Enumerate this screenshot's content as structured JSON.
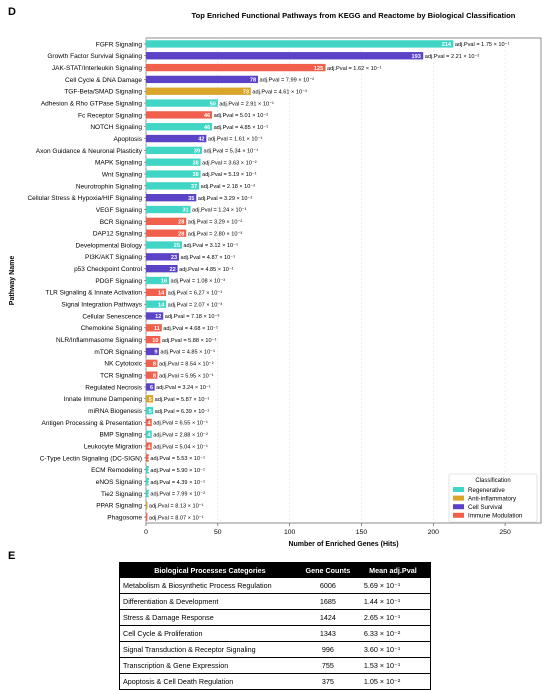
{
  "panel_d": {
    "letter": "D"
  },
  "panel_e": {
    "letter": "E"
  },
  "chart_data": {
    "type": "bar",
    "orientation": "horizontal",
    "title": "Top Enriched Functional Pathways from KEGG and Reactome by Biological Classification",
    "xlabel": "Number of Enriched Genes (Hits)",
    "ylabel": "Pathway Name",
    "xlim": [
      0,
      275
    ],
    "xticks": [
      "0",
      "50",
      "100",
      "150",
      "200",
      "250"
    ],
    "grid": true,
    "legend": {
      "title": "Classification",
      "placement": "bottom-right",
      "items": [
        {
          "name": "Regenerative",
          "color": "#40d5c4"
        },
        {
          "name": "Anti-inflammatory",
          "color": "#d9a52b"
        },
        {
          "name": "Cell Survival",
          "color": "#5b42c6"
        },
        {
          "name": "Immune Modulation",
          "color": "#f0604d"
        }
      ]
    },
    "bars": [
      {
        "label": "FGFR Signaling",
        "value": 214,
        "class": "Regenerative",
        "pval": "adj.Pval = 1.75 × 10⁻¹"
      },
      {
        "label": "Growth Factor Survival Signaling",
        "value": 193,
        "class": "Cell Survival",
        "pval": "adj.Pval = 2.21 × 10⁻²"
      },
      {
        "label": "JAK-STAT/Interleukin Signaling",
        "value": 125,
        "class": "Immune Modulation",
        "pval": "adj.Pval = 1.62 × 10⁻¹"
      },
      {
        "label": "Cell Cycle & DNA Damage",
        "value": 78,
        "class": "Cell Survival",
        "pval": "adj.Pval = 7.99 × 10⁻²"
      },
      {
        "label": "TGF-Beta/SMAD Signaling",
        "value": 73,
        "class": "Anti-inflammatory",
        "pval": "adj.Pval = 4.61 × 10⁻³"
      },
      {
        "label": "Adhesion & Rho GTPase Signaling",
        "value": 50,
        "class": "Regenerative",
        "pval": "adj.Pval = 2.91 × 10⁻¹"
      },
      {
        "label": "Fc Receptor Signaling",
        "value": 46,
        "class": "Immune Modulation",
        "pval": "adj.Pval = 5.01 × 10⁻²"
      },
      {
        "label": "NOTCH Signaling",
        "value": 46,
        "class": "Regenerative",
        "pval": "adj.Pval = 4.85 × 10⁻¹"
      },
      {
        "label": "Apoptosis",
        "value": 42,
        "class": "Cell Survival",
        "pval": "adj.Pval = 1.61 × 10⁻¹"
      },
      {
        "label": "Axon Guidance & Neuronal Plasticity",
        "value": 39,
        "class": "Regenerative",
        "pval": "adj.Pval = 5.34 × 10⁻¹"
      },
      {
        "label": "MAPK Signaling",
        "value": 38,
        "class": "Regenerative",
        "pval": "adj.Pval = 3.63 × 10⁻²"
      },
      {
        "label": "Wnt Signaling",
        "value": 38,
        "class": "Regenerative",
        "pval": "adj.Pval = 5.19 × 10⁻¹"
      },
      {
        "label": "Neurotrophin Signaling",
        "value": 37,
        "class": "Regenerative",
        "pval": "adj.Pval = 2.18 × 10⁻²"
      },
      {
        "label": "Cellular Stress & Hypoxia/HIF Signaling",
        "value": 35,
        "class": "Cell Survival",
        "pval": "adj.Pval = 3.29 × 10⁻²"
      },
      {
        "label": "VEGF Signaling",
        "value": 31,
        "class": "Regenerative",
        "pval": "adj.Pval = 1.24 × 10⁻¹"
      },
      {
        "label": "BCR Signaling",
        "value": 28,
        "class": "Immune Modulation",
        "pval": "adj.Pval = 3.29 × 10⁻²"
      },
      {
        "label": "DAP12 Signaling",
        "value": 28,
        "class": "Immune Modulation",
        "pval": "adj.Pval = 2.80 × 10⁻³"
      },
      {
        "label": "Developmental Biology",
        "value": 25,
        "class": "Regenerative",
        "pval": "adj.Pval = 3.12 × 10⁻¹"
      },
      {
        "label": "PI3K/AKT Signaling",
        "value": 23,
        "class": "Cell Survival",
        "pval": "adj.Pval = 4.87 × 10⁻¹"
      },
      {
        "label": "p53 Checkpoint Control",
        "value": 22,
        "class": "Cell Survival",
        "pval": "adj.Pval = 4.85 × 10⁻¹"
      },
      {
        "label": "PDGF Signaling",
        "value": 16,
        "class": "Regenerative",
        "pval": "adj.Pval = 1.08 × 10⁻³"
      },
      {
        "label": "TLR Signaling & Innate Activation",
        "value": 14,
        "class": "Immune Modulation",
        "pval": "adj.Pval = 6.27 × 10⁻¹"
      },
      {
        "label": "Signal Integration Pathways",
        "value": 14,
        "class": "Regenerative",
        "pval": "adj.Pval = 2.07 × 10⁻³"
      },
      {
        "label": "Cellular Senescence",
        "value": 12,
        "class": "Cell Survival",
        "pval": "adj.Pval = 7.18 × 10⁻³"
      },
      {
        "label": "Chemokine Signaling",
        "value": 11,
        "class": "Immune Modulation",
        "pval": "adj.Pval = 4.68 × 10⁻¹"
      },
      {
        "label": "NLR/Inflammasome Signaling",
        "value": 10,
        "class": "Immune Modulation",
        "pval": "adj.Pval = 5.88 × 10⁻¹"
      },
      {
        "label": "mTOR Signaling",
        "value": 9,
        "class": "Cell Survival",
        "pval": "adj.Pval = 4.85 × 10⁻¹"
      },
      {
        "label": "NK Cytotoxic",
        "value": 8,
        "class": "Immune Modulation",
        "pval": "adj.Pval = 8.54 × 10⁻²"
      },
      {
        "label": "TCR Signaling",
        "value": 8,
        "class": "Immune Modulation",
        "pval": "adj.Pval = 5.95 × 10⁻¹"
      },
      {
        "label": "Regulated Necrosis",
        "value": 6,
        "class": "Cell Survival",
        "pval": "adj.Pval = 3.24 × 10⁻¹"
      },
      {
        "label": "Innate Immune Dampening",
        "value": 5,
        "class": "Anti-inflammatory",
        "pval": "adj.Pval = 5.87 × 10⁻¹"
      },
      {
        "label": "miRNA Biogenesis",
        "value": 5,
        "class": "Regenerative",
        "pval": "adj.Pval = 6.39 × 10⁻¹"
      },
      {
        "label": "Antigen Processing & Presentation",
        "value": 4,
        "class": "Immune Modulation",
        "pval": "adj.Pval = 6.55 × 10⁻¹"
      },
      {
        "label": "BMP Signaling",
        "value": 4,
        "class": "Regenerative",
        "pval": "adj.Pval = 2.88 × 10⁻²"
      },
      {
        "label": "Leukocyte Migration",
        "value": 4,
        "class": "Immune Modulation",
        "pval": "adj.Pval = 5.04 × 10⁻¹"
      },
      {
        "label": "C-Type Lectin Signaling (DC-SIGN)",
        "value": 2,
        "class": "Immune Modulation",
        "pval": "adj.Pval = 5.53 × 10⁻¹"
      },
      {
        "label": "ECM Remodeling",
        "value": 2,
        "class": "Regenerative",
        "pval": "adj.Pval = 5.90 × 10⁻¹"
      },
      {
        "label": "eNOS Signaling",
        "value": 2,
        "class": "Regenerative",
        "pval": "adj.Pval = 4.39 × 10⁻¹"
      },
      {
        "label": "Tie2 Signaling",
        "value": 2,
        "class": "Regenerative",
        "pval": "adj.Pval = 7.99 × 10⁻²"
      },
      {
        "label": "PPAR Signaling",
        "value": 1,
        "class": "Anti-inflammatory",
        "pval": "adj.Pval = 8.13 × 10⁻¹"
      },
      {
        "label": "Phagosome",
        "value": 1,
        "class": "Immune Modulation",
        "pval": "adj.Pval = 8.07 × 10⁻¹"
      }
    ]
  },
  "table": {
    "headers": [
      "Biological Processes Categories",
      "Gene Counts",
      "Mean adj.Pval"
    ],
    "rows": [
      [
        "Metabolism & Biosynthetic Process Regulation",
        "6006",
        "5.69 × 10⁻¹"
      ],
      [
        "Differentiation & Development",
        "1685",
        "1.44 × 10⁻¹"
      ],
      [
        "Stress & Damage Response",
        "1424",
        "2.65 × 10⁻¹"
      ],
      [
        "Cell Cycle & Proliferation",
        "1343",
        "6.33 × 10⁻²"
      ],
      [
        "Signal Transduction & Receptor Signaling",
        "996",
        "3.60 × 10⁻¹"
      ],
      [
        "Transcription & Gene Expression",
        "755",
        "1.53 × 10⁻¹"
      ],
      [
        "Apoptosis & Cell Death Regulation",
        "375",
        "1.05 × 10⁻²"
      ]
    ]
  }
}
